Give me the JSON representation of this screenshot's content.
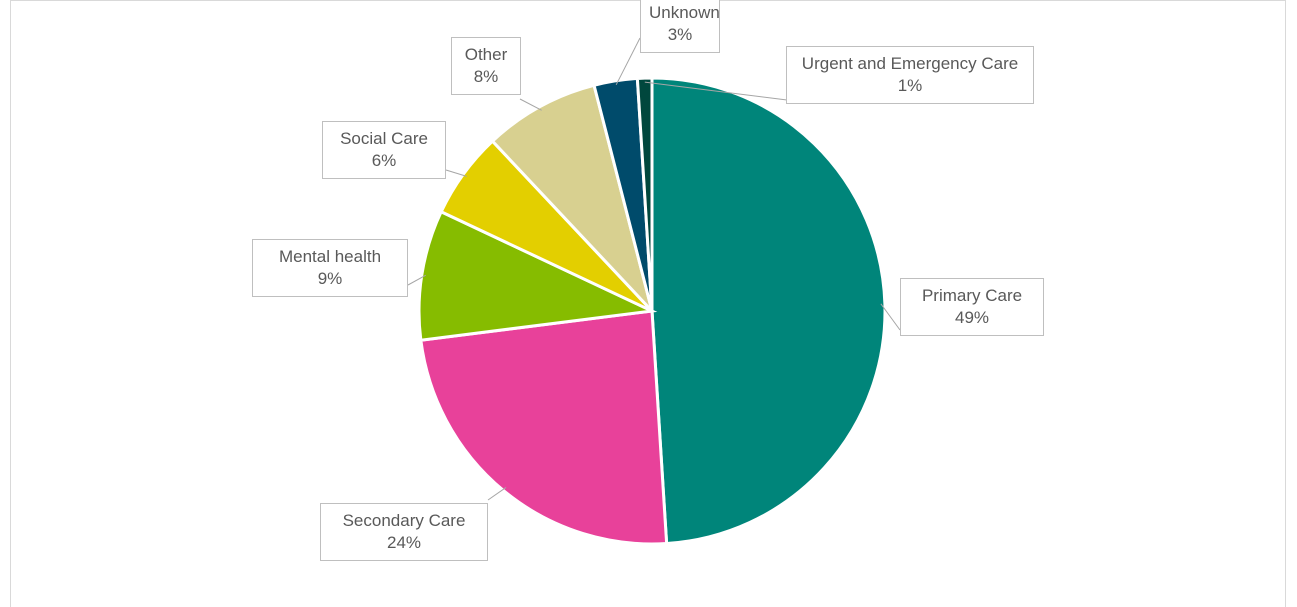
{
  "chart_data": {
    "type": "pie",
    "categories": [
      "Primary Care",
      "Secondary Care",
      "Mental health",
      "Social Care",
      "Other",
      "Unknown",
      "Urgent and Emergency Care"
    ],
    "values": [
      49,
      24,
      9,
      6,
      8,
      3,
      1
    ],
    "value_labels": [
      "49%",
      "24%",
      "9%",
      "6%",
      "8%",
      "3%",
      "1%"
    ],
    "colors": [
      "#00857a",
      "#e8419a",
      "#86bc00",
      "#e3cf00",
      "#d8d090",
      "#004b6b",
      "#00473d"
    ]
  }
}
